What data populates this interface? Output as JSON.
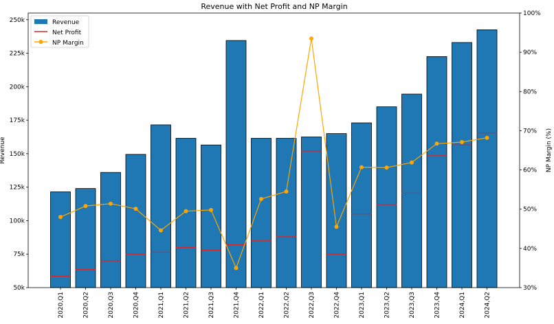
{
  "chart_data": {
    "type": "bar",
    "title": "Revenue with Net Profit and NP Margin",
    "ylabel": "Revenue",
    "y2label": "NP Margin (%)",
    "ylim": [
      50000,
      255000
    ],
    "y2lim": [
      30,
      100
    ],
    "yticks": [
      50000,
      75000,
      100000,
      125000,
      150000,
      175000,
      200000,
      225000,
      250000
    ],
    "ytick_labels": [
      "50k",
      "75k",
      "100k",
      "125k",
      "150k",
      "175k",
      "200k",
      "225k",
      "250k"
    ],
    "y2ticks": [
      30,
      40,
      50,
      60,
      70,
      80,
      90,
      100
    ],
    "y2tick_labels": [
      "30%",
      "40%",
      "50%",
      "60%",
      "70%",
      "80%",
      "90%",
      "100%"
    ],
    "legend_position": "top-left",
    "categories": [
      "2020,Q1",
      "2020,Q2",
      "2020,Q3",
      "2020,Q4",
      "2021,Q1",
      "2021,Q2",
      "2021,Q3",
      "2021,Q4",
      "2022,Q1",
      "2022,Q2",
      "2022,Q3",
      "2022,Q4",
      "2023,Q1",
      "2023,Q2",
      "2023,Q3",
      "2023,Q4",
      "2024,Q1",
      "2024,Q2"
    ],
    "series": [
      {
        "name": "Revenue",
        "kind": "bar",
        "axis": "left",
        "color": "#1f77b4",
        "values": [
          121500,
          124000,
          136000,
          149500,
          171500,
          161500,
          156500,
          234500,
          161500,
          161500,
          162500,
          165000,
          173000,
          185000,
          194500,
          222500,
          233000,
          242500
        ]
      },
      {
        "name": "Net Profit",
        "kind": "hline",
        "axis": "left",
        "color": "#d62728",
        "values": [
          58500,
          63500,
          70000,
          75000,
          76500,
          80000,
          78000,
          82000,
          85000,
          88000,
          152000,
          75000,
          105000,
          112000,
          120500,
          148500,
          156500,
          165500
        ]
      },
      {
        "name": "NP Margin",
        "kind": "line",
        "axis": "right",
        "color": "#ffa500",
        "values": [
          48.0,
          50.8,
          51.4,
          50.1,
          44.6,
          49.5,
          49.8,
          35.0,
          52.6,
          54.5,
          93.5,
          45.5,
          60.7,
          60.6,
          61.9,
          66.7,
          67.1,
          68.2
        ]
      }
    ]
  }
}
